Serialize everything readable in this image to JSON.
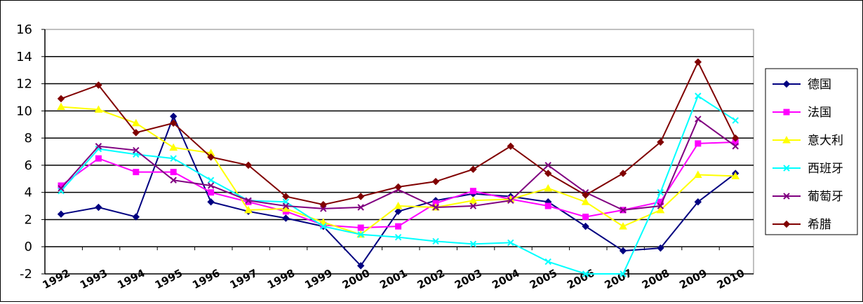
{
  "chart_data": {
    "type": "line",
    "title": "",
    "xlabel": "",
    "ylabel": "",
    "ylim": [
      -2,
      16
    ],
    "yticks": [
      -2,
      0,
      2,
      4,
      6,
      8,
      10,
      12,
      14,
      16
    ],
    "grid": "horizontal",
    "legend_position": "right",
    "categories": [
      "1992",
      "1993",
      "1994",
      "1995",
      "1996",
      "1997",
      "1998",
      "1999",
      "2000",
      "2001",
      "2002",
      "2003",
      "2004",
      "2005",
      "2006",
      "2007",
      "2008",
      "2009",
      "2010"
    ],
    "tick_labels": [
      "1992",
      "1993",
      "1994",
      "1995",
      "1996",
      "1997",
      "1998",
      "1999",
      "2000",
      "2001",
      "2002",
      "2003",
      "2004",
      "2005",
      "2006",
      "2007",
      "2008",
      "2009",
      "2010"
    ],
    "series": [
      {
        "name": "德国",
        "color": "#000080",
        "marker": "diamond",
        "values": [
          2.4,
          2.9,
          2.2,
          9.6,
          3.3,
          2.6,
          2.1,
          1.5,
          -1.4,
          2.6,
          3.4,
          3.9,
          3.7,
          3.3,
          1.5,
          -0.3,
          -0.1,
          3.3,
          5.4
        ]
      },
      {
        "name": "法国",
        "color": "#ff00ff",
        "marker": "square",
        "values": [
          4.5,
          6.5,
          5.5,
          5.5,
          4.0,
          3.3,
          2.6,
          1.6,
          1.4,
          1.5,
          3.2,
          4.1,
          3.5,
          3.0,
          2.2,
          2.7,
          3.3,
          7.6,
          7.7
        ]
      },
      {
        "name": "意大利",
        "color": "#ffff00",
        "marker": "triangle",
        "values": [
          10.3,
          10.1,
          9.1,
          7.3,
          6.9,
          2.7,
          2.8,
          1.8,
          0.9,
          3.0,
          2.9,
          3.4,
          3.5,
          4.3,
          3.3,
          1.5,
          2.7,
          5.3,
          5.2
        ]
      },
      {
        "name": "西班牙",
        "color": "#00ffff",
        "marker": "x",
        "values": [
          4.1,
          7.2,
          6.8,
          6.5,
          4.9,
          3.4,
          3.3,
          1.5,
          0.9,
          0.7,
          0.4,
          0.2,
          0.3,
          -1.1,
          -2.0,
          -2.0,
          4.0,
          11.1,
          9.3
        ]
      },
      {
        "name": "葡萄牙",
        "color": "#800080",
        "marker": "x",
        "values": [
          4.3,
          7.4,
          7.1,
          4.9,
          4.5,
          3.4,
          3.0,
          2.8,
          2.9,
          4.2,
          2.9,
          3.0,
          3.4,
          6.0,
          4.0,
          2.7,
          3.0,
          9.4,
          7.4
        ]
      },
      {
        "name": "希腊",
        "color": "#800000",
        "marker": "diamond",
        "values": [
          10.9,
          11.9,
          8.4,
          9.1,
          6.6,
          6.0,
          3.7,
          3.1,
          3.7,
          4.4,
          4.8,
          5.7,
          7.4,
          5.4,
          3.8,
          5.4,
          7.7,
          13.6,
          8.0
        ]
      }
    ]
  }
}
